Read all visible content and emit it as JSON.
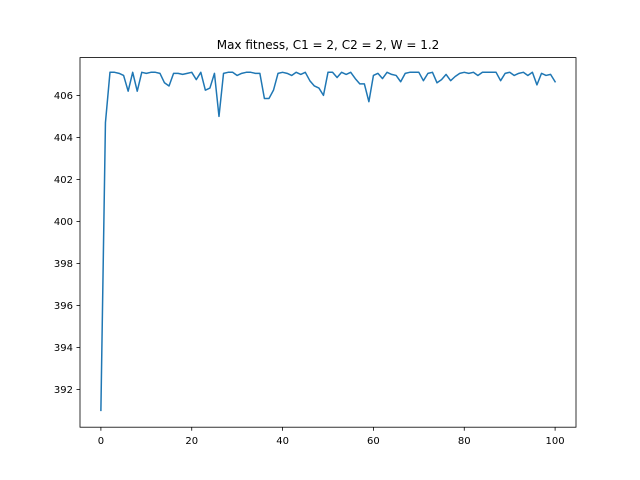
{
  "chart_data": {
    "type": "line",
    "title": "Max fitness, C1 = 2, C2 = 2, W = 1.2",
    "xlabel": "",
    "ylabel": "",
    "xlim": [
      -4.6,
      104.6
    ],
    "ylim": [
      390.2,
      407.8
    ],
    "xticks": [
      0,
      20,
      40,
      60,
      80,
      100
    ],
    "yticks": [
      392,
      394,
      396,
      398,
      400,
      402,
      404,
      406
    ],
    "grid": false,
    "legend": "none",
    "colors": {
      "line": "#1f77b4",
      "axes": "#000000",
      "background": "#ffffff"
    },
    "series": [
      {
        "x": [
          0,
          1,
          2,
          3,
          4,
          5,
          6,
          7,
          8,
          9,
          10,
          11,
          12,
          13,
          14,
          15,
          16,
          17,
          18,
          19,
          20,
          21,
          22,
          23,
          24,
          25,
          26,
          27,
          28,
          29,
          30,
          31,
          32,
          33,
          34,
          35,
          36,
          37,
          38,
          39,
          40,
          41,
          42,
          43,
          44,
          45,
          46,
          47,
          48,
          49,
          50,
          51,
          52,
          53,
          54,
          55,
          56,
          57,
          58,
          59,
          60,
          61,
          62,
          63,
          64,
          65,
          66,
          67,
          68,
          69,
          70,
          71,
          72,
          73,
          74,
          75,
          76,
          77,
          78,
          79,
          80,
          81,
          82,
          83,
          84,
          85,
          86,
          87,
          88,
          89,
          90,
          91,
          92,
          93,
          94,
          95,
          96,
          97,
          98,
          99,
          100
        ],
        "values": [
          391.0,
          404.7,
          407.1,
          407.1,
          407.05,
          406.95,
          406.2,
          407.1,
          406.2,
          407.1,
          407.05,
          407.1,
          407.1,
          407.05,
          406.6,
          406.45,
          407.05,
          407.05,
          407.0,
          407.05,
          407.1,
          406.75,
          407.1,
          406.25,
          406.35,
          407.05,
          405.0,
          407.05,
          407.1,
          407.1,
          406.95,
          407.05,
          407.1,
          407.1,
          407.05,
          407.05,
          405.85,
          405.85,
          406.25,
          407.05,
          407.1,
          407.05,
          406.95,
          407.1,
          407.0,
          407.1,
          406.7,
          406.45,
          406.35,
          406.0,
          407.1,
          407.1,
          406.85,
          407.1,
          407.0,
          407.1,
          406.8,
          406.55,
          406.55,
          405.7,
          406.95,
          407.05,
          406.8,
          407.1,
          407.0,
          406.95,
          406.65,
          407.05,
          407.1,
          407.1,
          407.1,
          406.7,
          407.05,
          407.1,
          406.6,
          406.75,
          407.0,
          406.7,
          406.9,
          407.05,
          407.1,
          407.05,
          407.1,
          406.95,
          407.1,
          407.1,
          407.1,
          407.1,
          406.7,
          407.05,
          407.1,
          406.95,
          407.05,
          407.1,
          406.95,
          407.1,
          406.5,
          407.05,
          406.95,
          407.0,
          406.65
        ]
      }
    ]
  }
}
